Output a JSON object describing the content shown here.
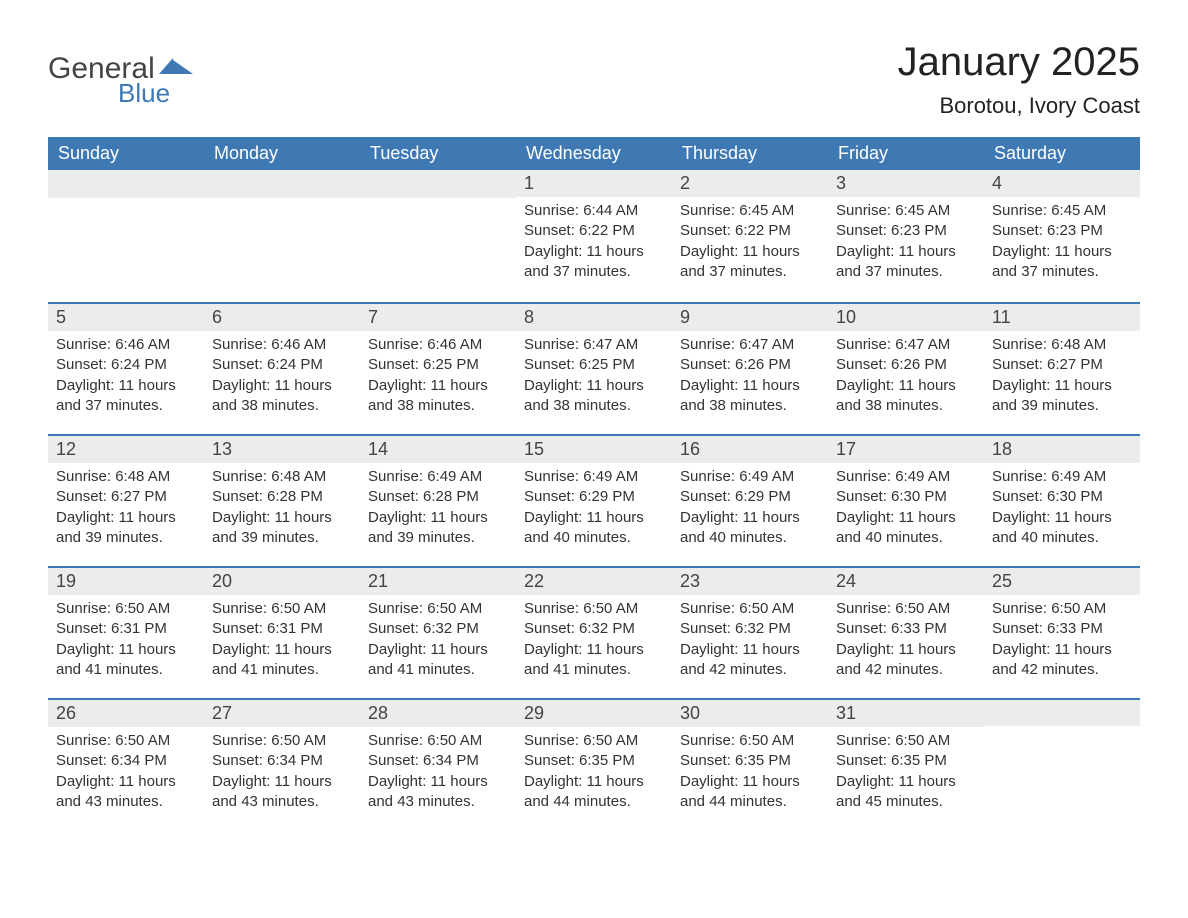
{
  "brand": {
    "word1": "General",
    "word2": "Blue",
    "accent_color": "#3e79b4",
    "text_color": "#444444"
  },
  "header": {
    "month_title": "January 2025",
    "location": "Borotou, Ivory Coast",
    "title_color": "#222222",
    "title_fontsize": 40,
    "location_fontsize": 22
  },
  "calendar": {
    "header_bg": "#3e79b4",
    "header_fg": "#ffffff",
    "daynum_bg": "#ececec",
    "row_border_color": "#3e79b4",
    "text_color": "#333333",
    "columns": [
      "Sunday",
      "Monday",
      "Tuesday",
      "Wednesday",
      "Thursday",
      "Friday",
      "Saturday"
    ],
    "weeks": [
      [
        null,
        null,
        null,
        {
          "day": "1",
          "sunrise": "Sunrise: 6:44 AM",
          "sunset": "Sunset: 6:22 PM",
          "daylight1": "Daylight: 11 hours",
          "daylight2": "and 37 minutes."
        },
        {
          "day": "2",
          "sunrise": "Sunrise: 6:45 AM",
          "sunset": "Sunset: 6:22 PM",
          "daylight1": "Daylight: 11 hours",
          "daylight2": "and 37 minutes."
        },
        {
          "day": "3",
          "sunrise": "Sunrise: 6:45 AM",
          "sunset": "Sunset: 6:23 PM",
          "daylight1": "Daylight: 11 hours",
          "daylight2": "and 37 minutes."
        },
        {
          "day": "4",
          "sunrise": "Sunrise: 6:45 AM",
          "sunset": "Sunset: 6:23 PM",
          "daylight1": "Daylight: 11 hours",
          "daylight2": "and 37 minutes."
        }
      ],
      [
        {
          "day": "5",
          "sunrise": "Sunrise: 6:46 AM",
          "sunset": "Sunset: 6:24 PM",
          "daylight1": "Daylight: 11 hours",
          "daylight2": "and 37 minutes."
        },
        {
          "day": "6",
          "sunrise": "Sunrise: 6:46 AM",
          "sunset": "Sunset: 6:24 PM",
          "daylight1": "Daylight: 11 hours",
          "daylight2": "and 38 minutes."
        },
        {
          "day": "7",
          "sunrise": "Sunrise: 6:46 AM",
          "sunset": "Sunset: 6:25 PM",
          "daylight1": "Daylight: 11 hours",
          "daylight2": "and 38 minutes."
        },
        {
          "day": "8",
          "sunrise": "Sunrise: 6:47 AM",
          "sunset": "Sunset: 6:25 PM",
          "daylight1": "Daylight: 11 hours",
          "daylight2": "and 38 minutes."
        },
        {
          "day": "9",
          "sunrise": "Sunrise: 6:47 AM",
          "sunset": "Sunset: 6:26 PM",
          "daylight1": "Daylight: 11 hours",
          "daylight2": "and 38 minutes."
        },
        {
          "day": "10",
          "sunrise": "Sunrise: 6:47 AM",
          "sunset": "Sunset: 6:26 PM",
          "daylight1": "Daylight: 11 hours",
          "daylight2": "and 38 minutes."
        },
        {
          "day": "11",
          "sunrise": "Sunrise: 6:48 AM",
          "sunset": "Sunset: 6:27 PM",
          "daylight1": "Daylight: 11 hours",
          "daylight2": "and 39 minutes."
        }
      ],
      [
        {
          "day": "12",
          "sunrise": "Sunrise: 6:48 AM",
          "sunset": "Sunset: 6:27 PM",
          "daylight1": "Daylight: 11 hours",
          "daylight2": "and 39 minutes."
        },
        {
          "day": "13",
          "sunrise": "Sunrise: 6:48 AM",
          "sunset": "Sunset: 6:28 PM",
          "daylight1": "Daylight: 11 hours",
          "daylight2": "and 39 minutes."
        },
        {
          "day": "14",
          "sunrise": "Sunrise: 6:49 AM",
          "sunset": "Sunset: 6:28 PM",
          "daylight1": "Daylight: 11 hours",
          "daylight2": "and 39 minutes."
        },
        {
          "day": "15",
          "sunrise": "Sunrise: 6:49 AM",
          "sunset": "Sunset: 6:29 PM",
          "daylight1": "Daylight: 11 hours",
          "daylight2": "and 40 minutes."
        },
        {
          "day": "16",
          "sunrise": "Sunrise: 6:49 AM",
          "sunset": "Sunset: 6:29 PM",
          "daylight1": "Daylight: 11 hours",
          "daylight2": "and 40 minutes."
        },
        {
          "day": "17",
          "sunrise": "Sunrise: 6:49 AM",
          "sunset": "Sunset: 6:30 PM",
          "daylight1": "Daylight: 11 hours",
          "daylight2": "and 40 minutes."
        },
        {
          "day": "18",
          "sunrise": "Sunrise: 6:49 AM",
          "sunset": "Sunset: 6:30 PM",
          "daylight1": "Daylight: 11 hours",
          "daylight2": "and 40 minutes."
        }
      ],
      [
        {
          "day": "19",
          "sunrise": "Sunrise: 6:50 AM",
          "sunset": "Sunset: 6:31 PM",
          "daylight1": "Daylight: 11 hours",
          "daylight2": "and 41 minutes."
        },
        {
          "day": "20",
          "sunrise": "Sunrise: 6:50 AM",
          "sunset": "Sunset: 6:31 PM",
          "daylight1": "Daylight: 11 hours",
          "daylight2": "and 41 minutes."
        },
        {
          "day": "21",
          "sunrise": "Sunrise: 6:50 AM",
          "sunset": "Sunset: 6:32 PM",
          "daylight1": "Daylight: 11 hours",
          "daylight2": "and 41 minutes."
        },
        {
          "day": "22",
          "sunrise": "Sunrise: 6:50 AM",
          "sunset": "Sunset: 6:32 PM",
          "daylight1": "Daylight: 11 hours",
          "daylight2": "and 41 minutes."
        },
        {
          "day": "23",
          "sunrise": "Sunrise: 6:50 AM",
          "sunset": "Sunset: 6:32 PM",
          "daylight1": "Daylight: 11 hours",
          "daylight2": "and 42 minutes."
        },
        {
          "day": "24",
          "sunrise": "Sunrise: 6:50 AM",
          "sunset": "Sunset: 6:33 PM",
          "daylight1": "Daylight: 11 hours",
          "daylight2": "and 42 minutes."
        },
        {
          "day": "25",
          "sunrise": "Sunrise: 6:50 AM",
          "sunset": "Sunset: 6:33 PM",
          "daylight1": "Daylight: 11 hours",
          "daylight2": "and 42 minutes."
        }
      ],
      [
        {
          "day": "26",
          "sunrise": "Sunrise: 6:50 AM",
          "sunset": "Sunset: 6:34 PM",
          "daylight1": "Daylight: 11 hours",
          "daylight2": "and 43 minutes."
        },
        {
          "day": "27",
          "sunrise": "Sunrise: 6:50 AM",
          "sunset": "Sunset: 6:34 PM",
          "daylight1": "Daylight: 11 hours",
          "daylight2": "and 43 minutes."
        },
        {
          "day": "28",
          "sunrise": "Sunrise: 6:50 AM",
          "sunset": "Sunset: 6:34 PM",
          "daylight1": "Daylight: 11 hours",
          "daylight2": "and 43 minutes."
        },
        {
          "day": "29",
          "sunrise": "Sunrise: 6:50 AM",
          "sunset": "Sunset: 6:35 PM",
          "daylight1": "Daylight: 11 hours",
          "daylight2": "and 44 minutes."
        },
        {
          "day": "30",
          "sunrise": "Sunrise: 6:50 AM",
          "sunset": "Sunset: 6:35 PM",
          "daylight1": "Daylight: 11 hours",
          "daylight2": "and 44 minutes."
        },
        {
          "day": "31",
          "sunrise": "Sunrise: 6:50 AM",
          "sunset": "Sunset: 6:35 PM",
          "daylight1": "Daylight: 11 hours",
          "daylight2": "and 45 minutes."
        },
        null
      ]
    ]
  }
}
